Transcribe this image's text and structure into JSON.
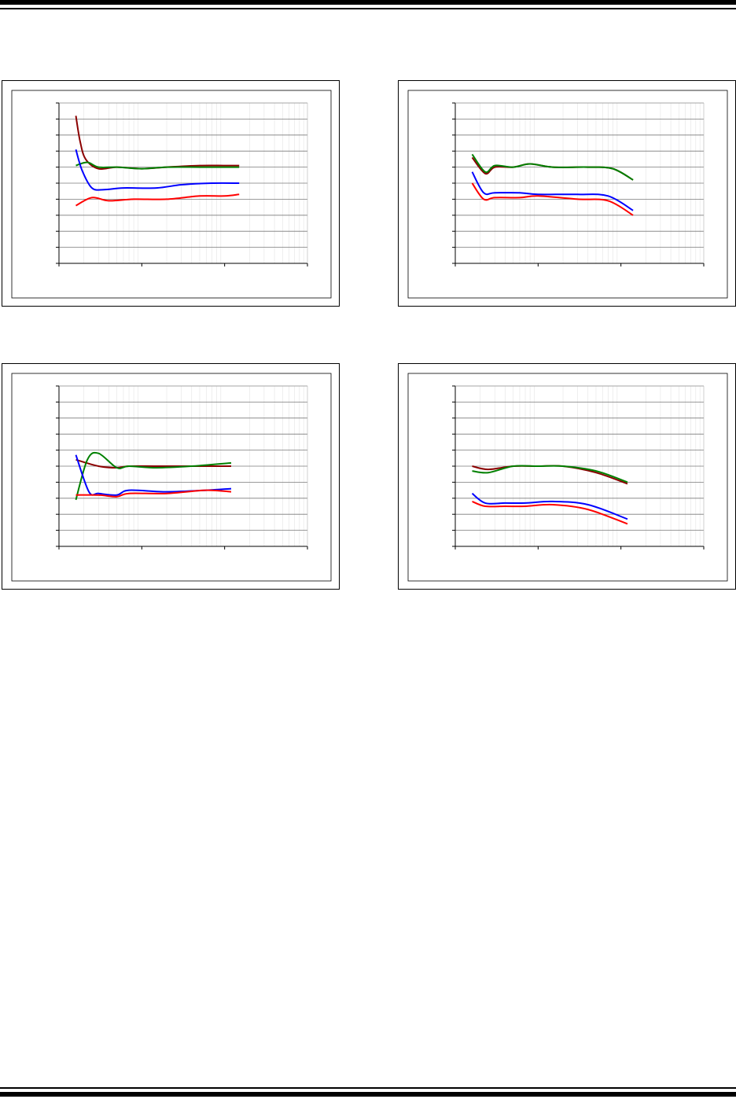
{
  "page": {
    "rule_color": "#000000"
  },
  "chart_data": [
    {
      "type": "line",
      "x_scale": "log",
      "y_grid_lines": 10,
      "grid": true,
      "series": [
        {
          "color": "#8b0000",
          "points": [
            [
              1.6,
              9.2
            ],
            [
              1.8,
              7.6
            ],
            [
              2.1,
              6.5
            ],
            [
              3,
              5.9
            ],
            [
              5,
              6.0
            ],
            [
              10,
              5.9
            ],
            [
              20,
              6.0
            ],
            [
              50,
              6.1
            ],
            [
              100,
              6.1
            ],
            [
              150,
              6.1
            ]
          ]
        },
        {
          "color": "#008000",
          "points": [
            [
              1.6,
              6.1
            ],
            [
              2.2,
              6.3
            ],
            [
              3,
              6.0
            ],
            [
              5,
              6.0
            ],
            [
              10,
              5.9
            ],
            [
              20,
              6.0
            ],
            [
              50,
              6.0
            ],
            [
              100,
              6.0
            ],
            [
              150,
              6.0
            ]
          ]
        },
        {
          "color": "#0000ff",
          "points": [
            [
              1.6,
              7.1
            ],
            [
              1.9,
              5.8
            ],
            [
              2.5,
              4.7
            ],
            [
              3.5,
              4.6
            ],
            [
              6,
              4.7
            ],
            [
              15,
              4.7
            ],
            [
              30,
              4.9
            ],
            [
              70,
              5.0
            ],
            [
              150,
              5.0
            ]
          ]
        },
        {
          "color": "#ff0000",
          "points": [
            [
              1.6,
              3.6
            ],
            [
              2.5,
              4.1
            ],
            [
              4,
              3.9
            ],
            [
              8,
              4.0
            ],
            [
              20,
              4.0
            ],
            [
              50,
              4.2
            ],
            [
              100,
              4.2
            ],
            [
              150,
              4.3
            ]
          ]
        }
      ]
    },
    {
      "type": "line",
      "x_scale": "log",
      "y_grid_lines": 10,
      "grid": true,
      "series": [
        {
          "color": "#8b0000",
          "points": [
            [
              1.6,
              6.6
            ],
            [
              2.3,
              5.6
            ],
            [
              3,
              6.0
            ],
            [
              5,
              6.0
            ],
            [
              8,
              6.2
            ],
            [
              15,
              6.0
            ],
            [
              40,
              6.0
            ],
            [
              80,
              5.9
            ],
            [
              140,
              5.2
            ]
          ]
        },
        {
          "color": "#008000",
          "points": [
            [
              1.6,
              6.8
            ],
            [
              2.3,
              5.7
            ],
            [
              3,
              6.1
            ],
            [
              5,
              6.0
            ],
            [
              8,
              6.2
            ],
            [
              15,
              6.0
            ],
            [
              40,
              6.0
            ],
            [
              80,
              5.9
            ],
            [
              140,
              5.2
            ]
          ]
        },
        {
          "color": "#0000ff",
          "points": [
            [
              1.6,
              5.7
            ],
            [
              2.2,
              4.4
            ],
            [
              3,
              4.4
            ],
            [
              6,
              4.4
            ],
            [
              10,
              4.3
            ],
            [
              30,
              4.3
            ],
            [
              70,
              4.2
            ],
            [
              140,
              3.3
            ]
          ]
        },
        {
          "color": "#ff0000",
          "points": [
            [
              1.6,
              5.0
            ],
            [
              2.2,
              4.0
            ],
            [
              3,
              4.1
            ],
            [
              6,
              4.1
            ],
            [
              10,
              4.2
            ],
            [
              30,
              4.0
            ],
            [
              70,
              3.9
            ],
            [
              140,
              3.0
            ]
          ]
        }
      ]
    },
    {
      "type": "line",
      "x_scale": "log",
      "y_grid_lines": 10,
      "grid": true,
      "series": [
        {
          "color": "#8b0000",
          "points": [
            [
              1.6,
              5.4
            ],
            [
              3,
              5.0
            ],
            [
              5,
              4.9
            ],
            [
              7,
              5.0
            ],
            [
              15,
              5.0
            ],
            [
              40,
              5.0
            ],
            [
              120,
              5.0
            ]
          ]
        },
        {
          "color": "#008000",
          "points": [
            [
              1.6,
              2.9
            ],
            [
              2.2,
              5.4
            ],
            [
              3,
              5.8
            ],
            [
              5,
              4.9
            ],
            [
              7,
              5.0
            ],
            [
              15,
              4.9
            ],
            [
              40,
              5.0
            ],
            [
              120,
              5.2
            ]
          ]
        },
        {
          "color": "#0000ff",
          "points": [
            [
              1.6,
              5.7
            ],
            [
              2.3,
              3.4
            ],
            [
              3,
              3.3
            ],
            [
              5,
              3.2
            ],
            [
              7,
              3.5
            ],
            [
              20,
              3.4
            ],
            [
              60,
              3.5
            ],
            [
              120,
              3.6
            ]
          ]
        },
        {
          "color": "#ff0000",
          "points": [
            [
              1.6,
              3.2
            ],
            [
              3,
              3.2
            ],
            [
              5,
              3.1
            ],
            [
              7,
              3.3
            ],
            [
              20,
              3.3
            ],
            [
              60,
              3.5
            ],
            [
              120,
              3.4
            ]
          ]
        }
      ]
    },
    {
      "type": "line",
      "x_scale": "log",
      "y_grid_lines": 10,
      "grid": true,
      "series": [
        {
          "color": "#8b0000",
          "points": [
            [
              1.6,
              5.0
            ],
            [
              2.5,
              4.8
            ],
            [
              5,
              5.0
            ],
            [
              10,
              5.0
            ],
            [
              20,
              5.0
            ],
            [
              50,
              4.6
            ],
            [
              120,
              3.9
            ]
          ]
        },
        {
          "color": "#008000",
          "points": [
            [
              1.6,
              4.7
            ],
            [
              2.5,
              4.6
            ],
            [
              5,
              5.0
            ],
            [
              10,
              5.0
            ],
            [
              20,
              5.0
            ],
            [
              50,
              4.7
            ],
            [
              120,
              4.0
            ]
          ]
        },
        {
          "color": "#0000ff",
          "points": [
            [
              1.6,
              3.3
            ],
            [
              2.3,
              2.7
            ],
            [
              4,
              2.7
            ],
            [
              7,
              2.7
            ],
            [
              15,
              2.8
            ],
            [
              40,
              2.6
            ],
            [
              120,
              1.7
            ]
          ]
        },
        {
          "color": "#ff0000",
          "points": [
            [
              1.6,
              2.8
            ],
            [
              2.3,
              2.5
            ],
            [
              4,
              2.5
            ],
            [
              7,
              2.5
            ],
            [
              15,
              2.6
            ],
            [
              40,
              2.3
            ],
            [
              120,
              1.4
            ]
          ]
        }
      ]
    }
  ]
}
